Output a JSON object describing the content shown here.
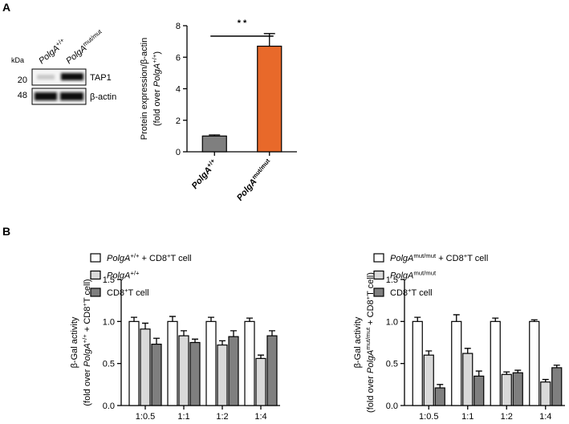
{
  "panel_labels": [
    "A",
    "B"
  ],
  "blot": {
    "kda": "kDa",
    "markers": [
      "20",
      "48"
    ],
    "bands": [
      "TAP1",
      "β-actin"
    ],
    "lanes": [
      [
        {
          "t": "PolgA",
          "s": "i"
        },
        {
          "t": "+/+",
          "s": "sup"
        }
      ],
      [
        {
          "t": "PolgA",
          "s": "i"
        },
        {
          "t": "mut/mut",
          "s": "sup"
        }
      ]
    ]
  },
  "chart_data": [
    {
      "type": "bar",
      "ylabel": [
        [
          {
            "t": "Protein expression/β-actin"
          }
        ],
        [
          {
            "t": "(fold over "
          },
          {
            "t": "PolgA",
            "s": "i"
          },
          {
            "t": "+/+",
            "s": "sup"
          },
          {
            "t": ")"
          }
        ]
      ],
      "categories": [
        [
          {
            "t": "PolgA",
            "s": "i"
          },
          {
            "t": "+/+",
            "s": "sup"
          }
        ],
        [
          {
            "t": "PolgA",
            "s": "i"
          },
          {
            "t": "mut/mut",
            "s": "sup"
          }
        ]
      ],
      "values": [
        1.0,
        6.7
      ],
      "errors": [
        0.07,
        0.8
      ],
      "colors": [
        "#7f7f7f",
        "#e8692a"
      ],
      "ylim": [
        0,
        8
      ],
      "yticks": [
        0,
        2,
        4,
        6,
        8
      ],
      "significance": "* *"
    },
    {
      "type": "grouped_bar",
      "ylabel": [
        [
          {
            "t": "β-Gal activity"
          }
        ],
        [
          {
            "t": "(fold over "
          },
          {
            "t": "PolgA",
            "s": "i"
          },
          {
            "t": "+/+",
            "s": "sup"
          },
          {
            "t": " + CD8"
          },
          {
            "t": "+",
            "s": "sup"
          },
          {
            "t": "T cell)"
          }
        ]
      ],
      "categories": [
        "1:0.5",
        "1:1",
        "1:2",
        "1:4"
      ],
      "series": [
        {
          "name": [
            {
              "t": "PolgA",
              "s": "i"
            },
            {
              "t": "+/+",
              "s": "sup"
            },
            {
              "t": " + CD8"
            },
            {
              "t": "+",
              "s": "sup"
            },
            {
              "t": "T cell"
            }
          ],
          "color": "#ffffff",
          "values": [
            1.0,
            1.0,
            1.0,
            1.0
          ],
          "errors": [
            0.05,
            0.06,
            0.05,
            0.04
          ]
        },
        {
          "name": [
            {
              "t": "PolgA",
              "s": "i"
            },
            {
              "t": "+/+",
              "s": "sup"
            }
          ],
          "color": "#d9d9d9",
          "values": [
            0.91,
            0.83,
            0.72,
            0.56
          ],
          "errors": [
            0.07,
            0.06,
            0.05,
            0.04
          ]
        },
        {
          "name": [
            {
              "t": "CD8"
            },
            {
              "t": "+",
              "s": "sup"
            },
            {
              "t": "T cell"
            }
          ],
          "color": "#7f7f7f",
          "values": [
            0.73,
            0.75,
            0.82,
            0.83
          ],
          "errors": [
            0.07,
            0.04,
            0.07,
            0.06
          ]
        }
      ],
      "ylim": [
        0,
        1.5
      ],
      "yticks": [
        {
          "value": 0,
          "label": "0.0"
        },
        {
          "value": 0.5,
          "label": "0.5"
        },
        {
          "value": 1,
          "label": "1.0"
        },
        {
          "value": 1.5,
          "label": "1.5"
        }
      ]
    },
    {
      "type": "grouped_bar",
      "ylabel": [
        [
          {
            "t": "β-Gal activity"
          }
        ],
        [
          {
            "t": "(fold over "
          },
          {
            "t": "PolgA",
            "s": "i"
          },
          {
            "t": "mut/mut",
            "s": "sup"
          },
          {
            "t": " + CD8"
          },
          {
            "t": "+",
            "s": "sup"
          },
          {
            "t": "T cell)"
          }
        ]
      ],
      "categories": [
        "1:0.5",
        "1:1",
        "1:2",
        "1:4"
      ],
      "series": [
        {
          "name": [
            {
              "t": "PolgA",
              "s": "i"
            },
            {
              "t": "mut/mut",
              "s": "sup"
            },
            {
              "t": " + CD8"
            },
            {
              "t": "+",
              "s": "sup"
            },
            {
              "t": "T cell"
            }
          ],
          "color": "#ffffff",
          "values": [
            1.0,
            1.0,
            1.0,
            1.0
          ],
          "errors": [
            0.05,
            0.08,
            0.04,
            0.02
          ]
        },
        {
          "name": [
            {
              "t": "PolgA",
              "s": "i"
            },
            {
              "t": "mut/mut",
              "s": "sup"
            }
          ],
          "color": "#d9d9d9",
          "values": [
            0.6,
            0.62,
            0.37,
            0.28
          ],
          "errors": [
            0.05,
            0.06,
            0.03,
            0.03
          ]
        },
        {
          "name": [
            {
              "t": "CD8"
            },
            {
              "t": "+",
              "s": "sup"
            },
            {
              "t": "T cell"
            }
          ],
          "color": "#7f7f7f",
          "values": [
            0.21,
            0.35,
            0.39,
            0.45
          ],
          "errors": [
            0.04,
            0.06,
            0.03,
            0.03
          ]
        }
      ],
      "ylim": [
        0,
        1.5
      ],
      "yticks": [
        {
          "value": 0,
          "label": "0.0"
        },
        {
          "value": 0.5,
          "label": "0.5"
        },
        {
          "value": 1,
          "label": "1.0"
        },
        {
          "value": 1.5,
          "label": "1.5"
        }
      ]
    }
  ]
}
